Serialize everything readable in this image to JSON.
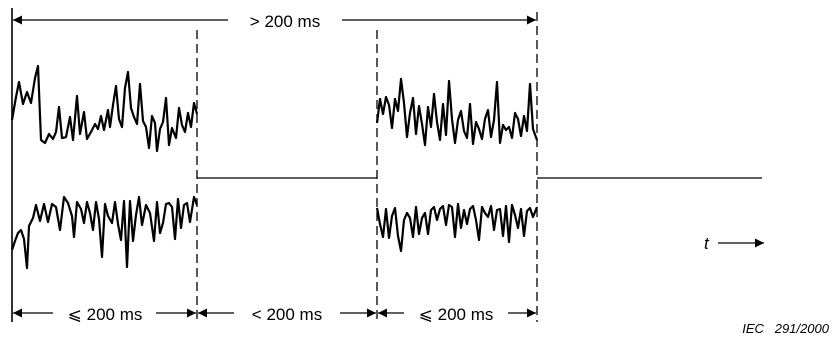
{
  "labels": {
    "top_span": "> 200 ms",
    "burst1": "⩽ 200 ms",
    "gap": "< 200 ms",
    "burst2": "⩽ 200 ms",
    "time_axis": "t",
    "reference": "IEC   291/2000"
  }
}
